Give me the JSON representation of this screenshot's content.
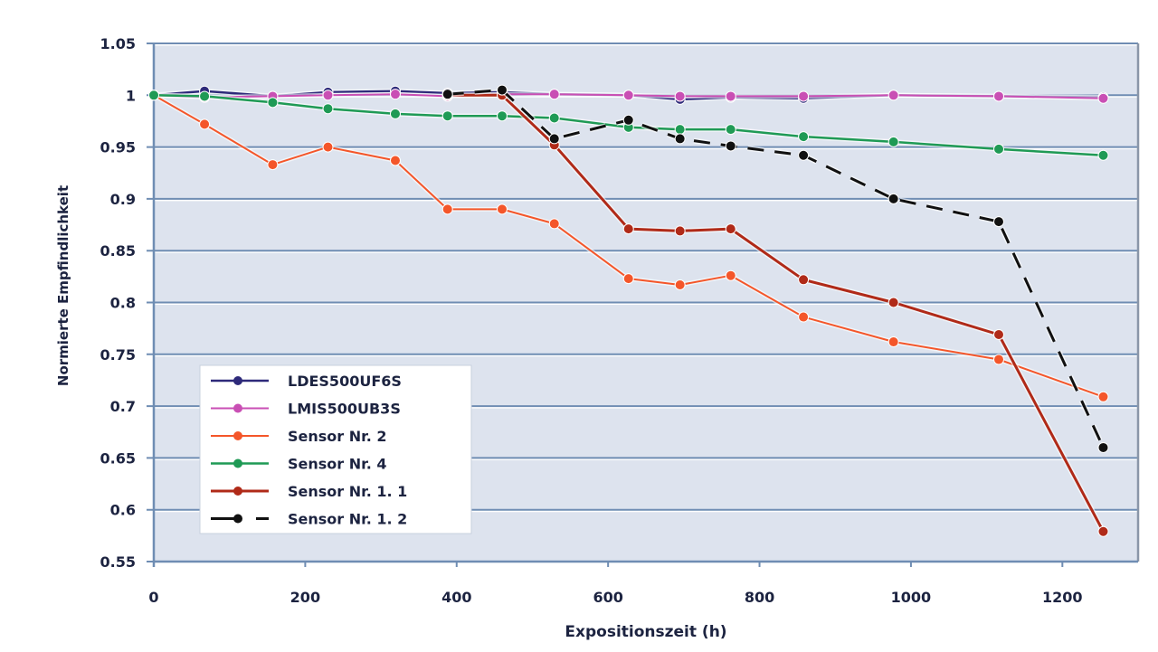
{
  "chart_data": {
    "type": "line",
    "title": "",
    "xlabel": "Expositionszeit (h)",
    "ylabel": "Normierte Empfindlichkeit",
    "xlim": [
      0,
      1300
    ],
    "ylim": [
      0.55,
      1.05
    ],
    "grid": true,
    "legend_position": "bottom-left",
    "x_ticks": [
      "0",
      "200",
      "400",
      "600",
      "800",
      "1000",
      "1200"
    ],
    "x_tick_values": [
      0,
      200,
      400,
      600,
      800,
      1000,
      1200
    ],
    "y_ticks": [
      "1.05",
      "1",
      "0.95",
      "0.9",
      "0.85",
      "0.8",
      "0.75",
      "0.7",
      "0.65",
      "0.6",
      "0.55"
    ],
    "y_tick_values": [
      1.05,
      1.0,
      0.95,
      0.9,
      0.85,
      0.8,
      0.75,
      0.7,
      0.65,
      0.6,
      0.55
    ],
    "colors": {
      "plot_bg": "#dde3ee",
      "grid": "#6f8db3",
      "axis": "#6f8db3",
      "text": "#1c2340"
    },
    "series": [
      {
        "name": "LDES500UF6S",
        "color": "#2e2a7a",
        "dashed": false,
        "width": 2.5,
        "x": [
          0,
          67,
          157,
          230,
          319,
          388,
          460,
          529,
          627,
          695,
          762,
          858,
          977,
          1116,
          1254
        ],
        "y": [
          1.0,
          1.004,
          0.999,
          1.003,
          1.004,
          1.002,
          1.003,
          1.001,
          1.0,
          0.996,
          0.998,
          0.997,
          1.0,
          0.999,
          0.998
        ]
      },
      {
        "name": "LMIS500UB3S",
        "color": "#c94fb4",
        "dashed": false,
        "width": 2,
        "x": [
          0,
          67,
          157,
          230,
          319,
          388,
          460,
          529,
          627,
          695,
          762,
          858,
          977,
          1116,
          1254
        ],
        "y": [
          1.0,
          0.998,
          0.999,
          1.0,
          1.001,
          0.999,
          1.001,
          1.001,
          1.0,
          0.999,
          0.999,
          0.999,
          1.0,
          0.999,
          0.997
        ]
      },
      {
        "name": "Sensor Nr. 2",
        "color": "#f4562a",
        "dashed": false,
        "width": 2,
        "x": [
          0,
          67,
          157,
          230,
          319,
          388,
          460,
          529,
          627,
          695,
          762,
          858,
          977,
          1116,
          1254
        ],
        "y": [
          1.0,
          0.972,
          0.933,
          0.95,
          0.937,
          0.89,
          0.89,
          0.876,
          0.823,
          0.817,
          0.826,
          0.786,
          0.762,
          0.745,
          0.709
        ]
      },
      {
        "name": "Sensor Nr. 4",
        "color": "#1f9a55",
        "dashed": false,
        "width": 2.5,
        "x": [
          0,
          67,
          157,
          230,
          319,
          388,
          460,
          529,
          627,
          695,
          762,
          858,
          977,
          1116,
          1254
        ],
        "y": [
          1.0,
          0.999,
          0.993,
          0.987,
          0.982,
          0.98,
          0.98,
          0.978,
          0.969,
          0.967,
          0.967,
          0.96,
          0.955,
          0.948,
          0.942
        ]
      },
      {
        "name": "Sensor Nr. 1. 1",
        "color": "#b02a18",
        "dashed": false,
        "width": 3,
        "x": [
          388,
          460,
          529,
          627,
          695,
          762,
          858,
          977,
          1116,
          1254
        ],
        "y": [
          1.0,
          1.0,
          0.952,
          0.871,
          0.869,
          0.871,
          0.822,
          0.8,
          0.769,
          0.579
        ]
      },
      {
        "name": "Sensor Nr. 1. 2",
        "color": "#111111",
        "dashed": true,
        "width": 3,
        "x": [
          388,
          460,
          529,
          627,
          695,
          762,
          858,
          977,
          1116,
          1254
        ],
        "y": [
          1.001,
          1.005,
          0.958,
          0.976,
          0.958,
          0.951,
          0.942,
          0.9,
          0.878,
          0.66
        ]
      }
    ]
  }
}
